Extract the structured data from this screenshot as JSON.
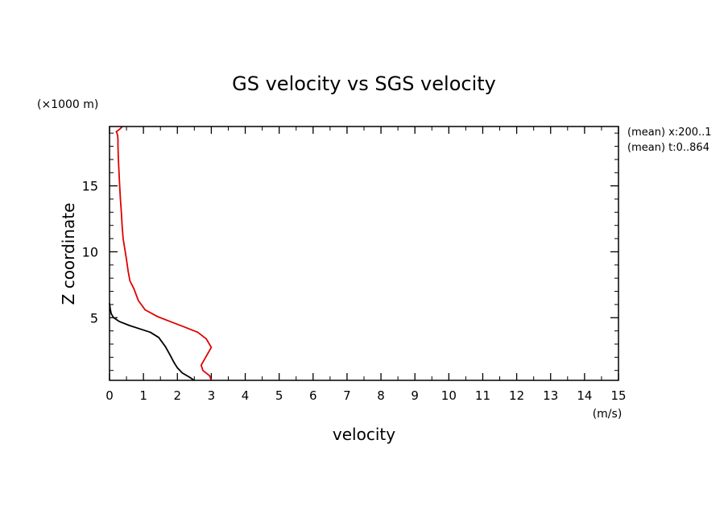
{
  "chart_data": {
    "type": "line",
    "title": "GS velocity vs SGS velocity",
    "xlabel": "velocity",
    "xunit": "(m/s)",
    "ylabel": "Z coordinate",
    "yunit": "(×1000 m)",
    "xlim": [
      0,
      15
    ],
    "ylim": [
      0.25,
      19.5
    ],
    "xticks": [
      0,
      1,
      2,
      3,
      4,
      5,
      6,
      7,
      8,
      9,
      10,
      11,
      12,
      13,
      14,
      15
    ],
    "yticks": [
      5,
      10,
      15
    ],
    "annotations": [
      "(mean) x:200..1",
      "(mean) t:0..864"
    ],
    "grid": false,
    "series": [
      {
        "color": "#e00000",
        "x": [
          3.0,
          2.95,
          2.75,
          2.7,
          2.8,
          3.0,
          2.85,
          2.6,
          2.2,
          1.8,
          1.4,
          1.05,
          0.85,
          0.72,
          0.6,
          0.55,
          0.5,
          0.45,
          0.4,
          0.37,
          0.35,
          0.32,
          0.3,
          0.28,
          0.26,
          0.25,
          0.25,
          0.24,
          0.22,
          0.2,
          0.3,
          0.38
        ],
        "y": [
          0.25,
          0.6,
          1.0,
          1.4,
          1.85,
          2.75,
          3.4,
          3.9,
          4.3,
          4.7,
          5.1,
          5.6,
          6.3,
          7.2,
          7.8,
          8.5,
          9.4,
          10.2,
          11.0,
          12.0,
          13.0,
          14.0,
          15.0,
          16.0,
          17.0,
          18.0,
          18.5,
          18.8,
          19.0,
          19.1,
          19.3,
          19.5
        ]
      },
      {
        "color": "#000000",
        "x": [
          2.5,
          2.35,
          2.15,
          2.0,
          1.9,
          1.8,
          1.65,
          1.45,
          1.2,
          0.9,
          0.6,
          0.3,
          0.12,
          0.05,
          0.02,
          0.0
        ],
        "y": [
          0.25,
          0.5,
          0.8,
          1.2,
          1.6,
          2.1,
          2.8,
          3.5,
          3.9,
          4.15,
          4.4,
          4.7,
          5.0,
          5.3,
          5.7,
          6.1
        ]
      }
    ]
  }
}
